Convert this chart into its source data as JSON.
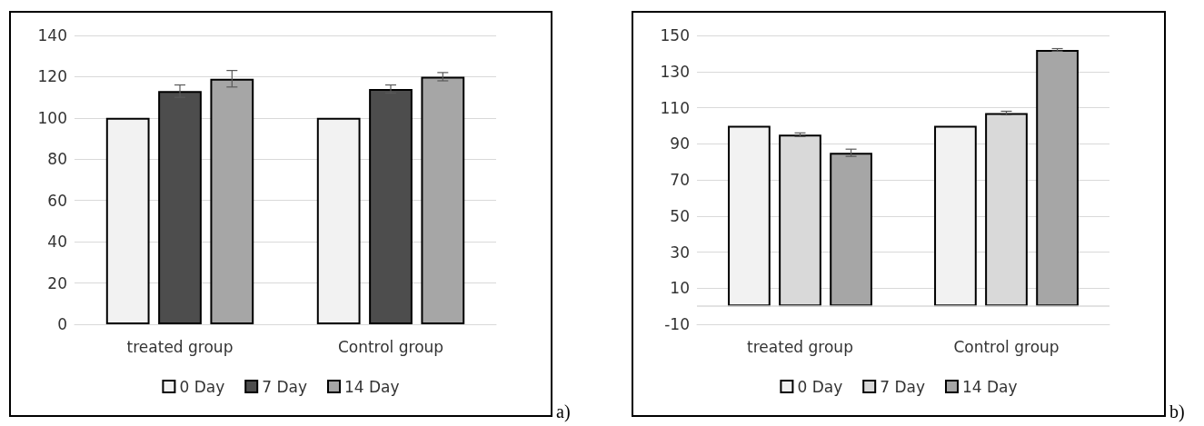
{
  "chart_data": [
    {
      "type": "bar",
      "categories": [
        "treated group",
        "Control group"
      ],
      "series": [
        {
          "name": "0 Day",
          "color": "#f2f2f2",
          "values": [
            100,
            100
          ],
          "errors": [
            null,
            null
          ]
        },
        {
          "name": "7 Day",
          "color": "#4d4d4d",
          "values": [
            113,
            114
          ],
          "errors": [
            3,
            2
          ]
        },
        {
          "name": "14 Day",
          "color": "#a6a6a6",
          "values": [
            119,
            120
          ],
          "errors": [
            4,
            2
          ]
        }
      ],
      "ylim": [
        0,
        140
      ],
      "yticks": [
        0,
        20,
        40,
        60,
        80,
        100,
        120,
        140
      ],
      "grid": "y",
      "legend": "bottom",
      "annotations": [
        "a)"
      ]
    },
    {
      "type": "bar",
      "categories": [
        "treated group",
        "Control group"
      ],
      "series": [
        {
          "name": "0 Day",
          "color": "#f2f2f2",
          "values": [
            100,
            100
          ],
          "errors": [
            null,
            null
          ]
        },
        {
          "name": "7 Day",
          "color": "#d9d9d9",
          "values": [
            95,
            107
          ],
          "errors": [
            1,
            1
          ]
        },
        {
          "name": "14 Day",
          "color": "#a6a6a6",
          "values": [
            85,
            142
          ],
          "errors": [
            2,
            0.7
          ]
        }
      ],
      "ylim": [
        -10,
        150
      ],
      "yticks": [
        -10,
        10,
        30,
        50,
        70,
        90,
        110,
        130,
        150
      ],
      "grid": "y",
      "legend": "bottom",
      "ref_lines": [
        {
          "axis": "y",
          "value": 0,
          "color": "#d9d9d9"
        }
      ],
      "annotations": [
        "b)"
      ]
    }
  ]
}
